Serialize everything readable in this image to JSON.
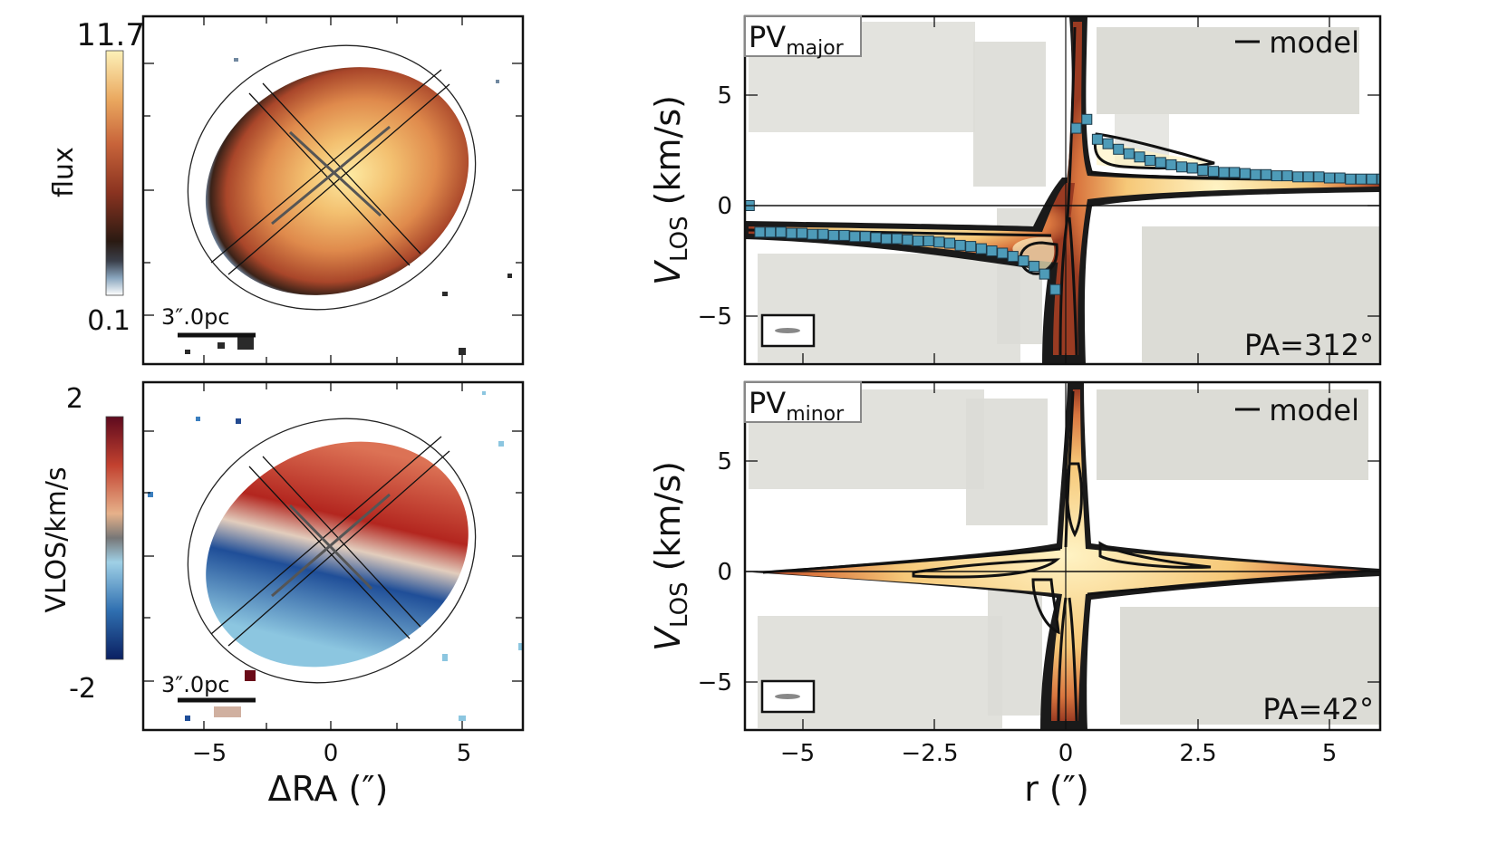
{
  "chart_data": [
    {
      "type": "heatmap",
      "panel": "flux-map",
      "colorbar": {
        "label": "flux",
        "max_label": "11.7",
        "min_label": "0.1"
      },
      "scalebar_label": "3″.0pc",
      "colors": {
        "bright": "#fde9a8",
        "mid": "#e39a55",
        "dark": "#8a3320",
        "edge": "#2a1a12"
      }
    },
    {
      "type": "heatmap",
      "panel": "velocity-map",
      "colorbar": {
        "label": "VLOS/km/s",
        "max_label": "2",
        "min_label": "-2"
      },
      "scalebar_label": "3″.0pc",
      "xlabel": "ΔRA (″)",
      "xticks": [
        "−5",
        "0",
        "5"
      ],
      "xlim": [
        -7.1,
        7.1
      ],
      "colors": {
        "positive": "#b5221f",
        "zero": "#e9d7c8",
        "negative": "#1a3d8a"
      }
    },
    {
      "type": "heatmap",
      "panel": "pv-major",
      "tag": {
        "main": "PV",
        "sub": "major"
      },
      "legend": "model",
      "pa_label": "PA=312°",
      "ylabel": {
        "main": "V",
        "sub": "LOS",
        "unit": "(km/s)"
      },
      "yticks": [
        "5",
        "0",
        "−5"
      ],
      "ylim": [
        -7,
        8.5
      ],
      "xlim": [
        -6,
        6
      ],
      "series": [
        {
          "name": "",
          "x": [
            -6.0,
            -5.8,
            -5.6,
            -5.4,
            -5.2,
            -5.0,
            -4.8,
            -4.6,
            -4.4,
            -4.2,
            -4.0,
            -3.8,
            -3.6,
            -3.4,
            -3.2,
            -3.0,
            -2.8,
            -2.6,
            -2.4,
            -2.2,
            -2.0,
            -1.8,
            -1.6,
            -1.4,
            -1.2,
            -1.0,
            -0.8,
            -0.6,
            -0.4,
            -0.2,
            0.2,
            0.4,
            0.6,
            0.8,
            1.0,
            1.2,
            1.4,
            1.6,
            1.8,
            2.0,
            2.2,
            2.4,
            2.6,
            2.8,
            3.0,
            3.2,
            3.4,
            3.6,
            3.8,
            4.0,
            4.2,
            4.4,
            4.6,
            4.8,
            5.0,
            5.2,
            5.4,
            5.6,
            5.8,
            6.0
          ],
          "y": [
            0.0,
            -1.2,
            -1.2,
            -1.2,
            -1.25,
            -1.25,
            -1.3,
            -1.3,
            -1.35,
            -1.35,
            -1.4,
            -1.4,
            -1.45,
            -1.5,
            -1.5,
            -1.55,
            -1.6,
            -1.6,
            -1.65,
            -1.7,
            -1.8,
            -1.85,
            -1.95,
            -2.05,
            -2.15,
            -2.3,
            -2.5,
            -2.75,
            -3.1,
            -3.8,
            3.5,
            3.9,
            3.0,
            2.8,
            2.55,
            2.35,
            2.2,
            2.05,
            1.95,
            1.85,
            1.75,
            1.7,
            1.6,
            1.55,
            1.5,
            1.5,
            1.45,
            1.4,
            1.4,
            1.35,
            1.35,
            1.3,
            1.3,
            1.3,
            1.25,
            1.25,
            1.2,
            1.2,
            1.2,
            1.2
          ]
        }
      ],
      "colors": {
        "marker": "#4e9bb8",
        "contour": "#111111"
      }
    },
    {
      "type": "heatmap",
      "panel": "pv-minor",
      "tag": {
        "main": "PV",
        "sub": "minor"
      },
      "legend": "model",
      "pa_label": "PA=42°",
      "ylabel": {
        "main": "V",
        "sub": "LOS",
        "unit": "(km/s)"
      },
      "yticks": [
        "5",
        "0",
        "−5"
      ],
      "ylim": [
        -7,
        8.5
      ],
      "xlabel": "r (″)",
      "xticks": [
        "−5",
        "−2.5",
        "0",
        "2.5",
        "5"
      ],
      "xlim": [
        -6,
        6
      ]
    }
  ]
}
